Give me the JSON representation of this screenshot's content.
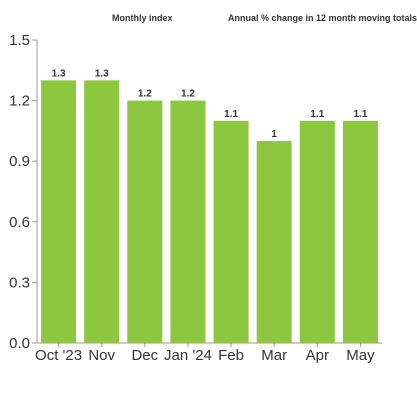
{
  "header": {
    "left": "Monthly index",
    "right": "Annual % change in 12 month moving totals"
  },
  "colors": {
    "bar": "#8dc63f",
    "axis": "#999999",
    "text": "#333333"
  },
  "chart_data": {
    "type": "bar",
    "title": "",
    "xlabel": "",
    "ylabel": "",
    "categories": [
      "Oct '23",
      "Nov",
      "Dec",
      "Jan '24",
      "Feb",
      "Mar",
      "Apr",
      "May"
    ],
    "values": [
      1.3,
      1.3,
      1.2,
      1.2,
      1.1,
      1.0,
      1.1,
      1.1
    ],
    "data_labels": [
      "1.3",
      "1.3",
      "1.2",
      "1.2",
      "1.1",
      "1",
      "1.1",
      "1.1"
    ],
    "ylim": [
      0,
      1.5
    ],
    "yticks": [
      0,
      0.3,
      0.6,
      0.9,
      1.2,
      1.5
    ],
    "ytick_labels": [
      "0.0",
      "0.3",
      "0.6",
      "0.9",
      "1.2",
      "1.5"
    ],
    "grid": false,
    "legend": "none"
  }
}
